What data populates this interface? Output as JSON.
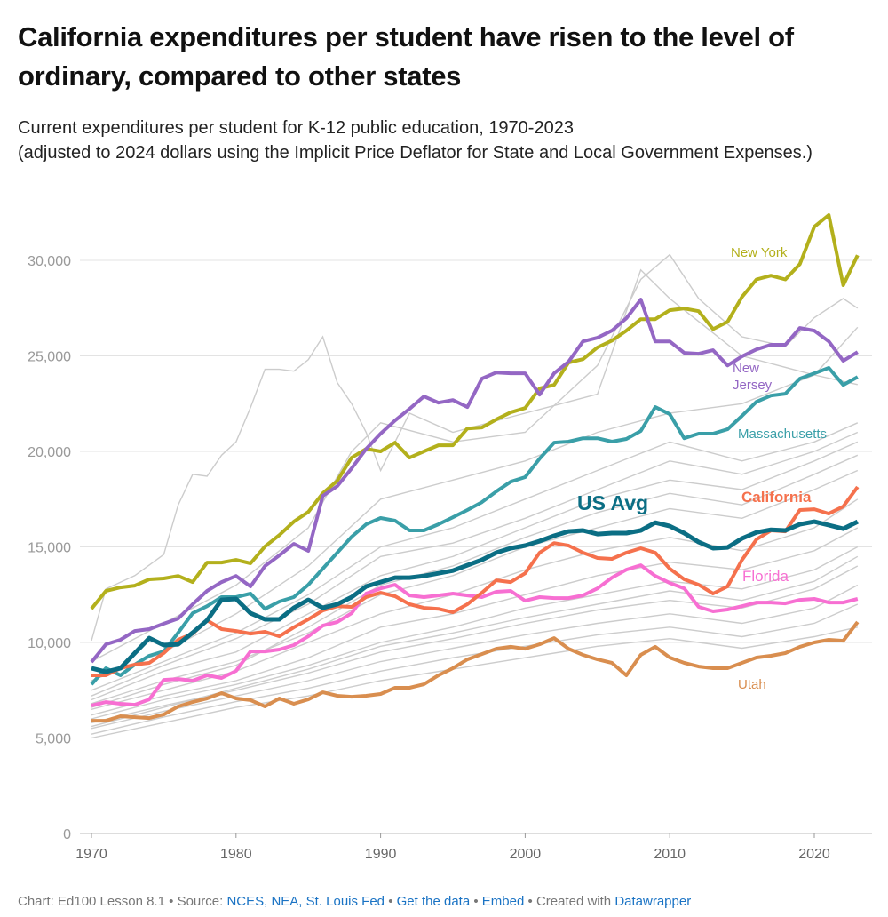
{
  "title": "California expenditures per student have risen to the level of ordinary, compared to other states",
  "subtitle_line1": "Current expenditures per student for K-12 public education, 1970-2023",
  "subtitle_line2": "(adjusted to 2024 dollars using the Implicit Price Deflator for State and Local Government Expenses.)",
  "footer": {
    "chart_credit": "Chart: Ed100 Lesson 8.1",
    "source_prefix": "Source:",
    "source_link": "NCES, NEA, St. Louis Fed",
    "get_data": "Get the data",
    "embed": "Embed",
    "created_prefix": "Created with",
    "datawrapper": "Datawrapper",
    "sep": "•"
  },
  "chart_data": {
    "type": "line",
    "title": "California expenditures per student have risen to the level of ordinary, compared to other states",
    "xlabel": "",
    "ylabel": "",
    "xlim": [
      1970,
      2023
    ],
    "ylim": [
      0,
      32500
    ],
    "x_ticks": [
      1970,
      1980,
      1990,
      2000,
      2010,
      2020
    ],
    "y_ticks": [
      0,
      5000,
      10000,
      15000,
      20000,
      25000,
      30000
    ],
    "y_tick_labels": [
      "0",
      "5,000",
      "10,000",
      "15,000",
      "20,000",
      "25,000",
      "30,000"
    ],
    "grid": "horizontal",
    "x_start": 1970,
    "series": [
      {
        "name": "New York",
        "color": "#b3b01c",
        "values": [
          11765,
          12700,
          12880,
          12970,
          13300,
          13350,
          13480,
          13160,
          14180,
          14180,
          14320,
          14140,
          15020,
          15620,
          16320,
          16830,
          17810,
          18460,
          19670,
          20130,
          20000,
          20460,
          19670,
          20000,
          20320,
          20320,
          21200,
          21250,
          21670,
          22040,
          22270,
          23300,
          23480,
          24650,
          24830,
          25440,
          25800,
          26320,
          26920,
          26920,
          27390,
          27480,
          27340,
          26400,
          26780,
          28090,
          29000,
          29200,
          29000,
          29800,
          31760,
          32370,
          28700,
          30270
        ]
      },
      {
        "name": "New Jersey",
        "color": "#9467c4",
        "values": [
          8970,
          9900,
          10140,
          10600,
          10700,
          10980,
          11250,
          12000,
          12700,
          13160,
          13480,
          12930,
          14000,
          14560,
          15160,
          14790,
          17670,
          18180,
          19110,
          20130,
          20930,
          21620,
          22230,
          22880,
          22550,
          22690,
          22320,
          23810,
          24130,
          24090,
          24090,
          22970,
          24090,
          24690,
          25760,
          25950,
          26320,
          26970,
          27950,
          25760,
          25760,
          25160,
          25110,
          25300,
          24500,
          24970,
          25340,
          25580,
          25580,
          26460,
          26320,
          25760,
          24740,
          25200
        ]
      },
      {
        "name": "Massachusetts",
        "color": "#3a9fa8",
        "values": [
          7810,
          8650,
          8280,
          8840,
          9300,
          9530,
          10510,
          11530,
          11900,
          12370,
          12370,
          12560,
          11760,
          12140,
          12370,
          13020,
          13860,
          14700,
          15530,
          16180,
          16510,
          16370,
          15860,
          15860,
          16180,
          16550,
          16930,
          17340,
          17900,
          18410,
          18650,
          19620,
          20460,
          20510,
          20690,
          20690,
          20510,
          20650,
          21070,
          22320,
          21950,
          20690,
          20930,
          20930,
          21160,
          21860,
          22600,
          22920,
          23020,
          23810,
          24090,
          24370,
          23480,
          23900
        ]
      },
      {
        "name": "US Avg",
        "color": "#0b6e84",
        "values": [
          8650,
          8460,
          8650,
          9440,
          10230,
          9860,
          9900,
          10510,
          11160,
          12230,
          12280,
          11530,
          11210,
          11210,
          11810,
          12230,
          11810,
          12000,
          12370,
          12930,
          13160,
          13390,
          13390,
          13480,
          13620,
          13760,
          14040,
          14320,
          14700,
          14930,
          15070,
          15300,
          15580,
          15810,
          15860,
          15670,
          15720,
          15720,
          15860,
          16270,
          16090,
          15720,
          15250,
          14930,
          14970,
          15440,
          15760,
          15900,
          15860,
          16180,
          16320,
          16140,
          15950,
          16320
        ]
      },
      {
        "name": "California",
        "color": "#f5714d",
        "values": [
          8280,
          8280,
          8650,
          8840,
          8930,
          9440,
          10140,
          10460,
          11160,
          10700,
          10600,
          10460,
          10560,
          10320,
          10790,
          11210,
          11670,
          11900,
          11860,
          12370,
          12600,
          12420,
          12000,
          11810,
          11760,
          11580,
          12000,
          12600,
          13250,
          13160,
          13620,
          14700,
          15200,
          15070,
          14700,
          14420,
          14370,
          14700,
          14930,
          14700,
          13860,
          13300,
          13020,
          12560,
          12930,
          14320,
          15390,
          15860,
          15810,
          16930,
          16970,
          16740,
          17110,
          18140
        ]
      },
      {
        "name": "Florida",
        "color": "#f76fd2",
        "values": [
          6700,
          6880,
          6790,
          6740,
          7020,
          8040,
          8090,
          8000,
          8280,
          8140,
          8510,
          9530,
          9530,
          9630,
          9860,
          10320,
          10880,
          11070,
          11530,
          12560,
          12830,
          13020,
          12460,
          12370,
          12460,
          12560,
          12460,
          12370,
          12650,
          12700,
          12180,
          12370,
          12320,
          12320,
          12460,
          12830,
          13390,
          13810,
          14040,
          13480,
          13110,
          12830,
          11860,
          11630,
          11720,
          11900,
          12090,
          12090,
          12040,
          12230,
          12280,
          12090,
          12090,
          12280
        ]
      },
      {
        "name": "Utah",
        "color": "#d98e4f",
        "values": [
          5900,
          5900,
          6140,
          6090,
          6040,
          6230,
          6650,
          6880,
          7070,
          7350,
          7070,
          6980,
          6650,
          7070,
          6790,
          7020,
          7390,
          7210,
          7160,
          7210,
          7300,
          7630,
          7630,
          7810,
          8280,
          8650,
          9110,
          9390,
          9670,
          9770,
          9670,
          9900,
          10230,
          9670,
          9350,
          9110,
          8930,
          8280,
          9350,
          9770,
          9210,
          8930,
          8740,
          8650,
          8650,
          8930,
          9210,
          9300,
          9440,
          9770,
          10000,
          10140,
          10090,
          11070
        ]
      }
    ],
    "other_states_color": "#cccccc",
    "other_states": [
      {
        "x": [
          1970,
          1971,
          1973,
          1975,
          1976,
          1977,
          1978,
          1979,
          1980,
          1981,
          1982,
          1983,
          1984,
          1985,
          1986,
          1987,
          1988,
          1989,
          1990,
          1992,
          1995,
          2000,
          2005,
          2008,
          2010,
          2015,
          2020,
          2023
        ],
        "values": [
          10100,
          12800,
          13500,
          14600,
          17200,
          18800,
          18700,
          19800,
          20500,
          22300,
          24300,
          24300,
          24200,
          24800,
          26000,
          23600,
          22500,
          21000,
          19000,
          22000,
          21000,
          22000,
          23000,
          29500,
          28000,
          25000,
          24000,
          23500
        ]
      },
      {
        "x": [
          1970,
          1975,
          1980,
          1985,
          1988,
          1990,
          1995,
          2000,
          2005,
          2008,
          2010,
          2012,
          2015,
          2018,
          2020,
          2022,
          2023
        ],
        "values": [
          9000,
          11000,
          13000,
          16000,
          20000,
          21500,
          20500,
          21000,
          24500,
          29000,
          30300,
          28000,
          26000,
          25500,
          27000,
          28000,
          27500
        ]
      },
      {
        "x": [
          1970,
          1975,
          1980,
          1985,
          1990,
          1995,
          2000,
          2005,
          2010,
          2015,
          2020,
          2023
        ],
        "values": [
          8000,
          9500,
          11500,
          14000,
          17500,
          18500,
          19500,
          21000,
          22000,
          22500,
          24000,
          26500
        ]
      },
      {
        "x": [
          1970,
          1975,
          1980,
          1985,
          1990,
          1995,
          2000,
          2005,
          2010,
          2015,
          2020,
          2023
        ],
        "values": [
          7500,
          9000,
          10500,
          12500,
          15000,
          16000,
          17500,
          19000,
          20500,
          19500,
          20500,
          21500
        ]
      },
      {
        "x": [
          1970,
          1975,
          1980,
          1985,
          1990,
          1995,
          2000,
          2005,
          2010,
          2015,
          2020,
          2023
        ],
        "values": [
          7000,
          8500,
          9500,
          11500,
          13500,
          14500,
          16000,
          17500,
          18500,
          18000,
          19500,
          20500
        ]
      },
      {
        "x": [
          1970,
          1975,
          1980,
          1985,
          1990,
          1995,
          2000,
          2005,
          2010,
          2015,
          2020,
          2023
        ],
        "values": [
          6800,
          8000,
          9000,
          10500,
          12500,
          13500,
          15000,
          16000,
          17000,
          16500,
          18000,
          19000
        ]
      },
      {
        "x": [
          1970,
          1975,
          1980,
          1985,
          1990,
          1995,
          2000,
          2005,
          2010,
          2015,
          2020,
          2023
        ],
        "values": [
          6500,
          7500,
          8500,
          10000,
          11500,
          12500,
          13800,
          14800,
          15500,
          14800,
          16000,
          17500
        ]
      },
      {
        "x": [
          1970,
          1975,
          1980,
          1985,
          1990,
          1995,
          2000,
          2005,
          2010,
          2015,
          2020,
          2023
        ],
        "values": [
          6200,
          7200,
          8000,
          9200,
          10800,
          11500,
          12500,
          13500,
          14200,
          13800,
          14800,
          16000
        ]
      },
      {
        "x": [
          1970,
          1975,
          1980,
          1985,
          1990,
          1995,
          2000,
          2005,
          2010,
          2015,
          2020,
          2023
        ],
        "values": [
          6000,
          7000,
          7800,
          8800,
          10000,
          10800,
          11800,
          12500,
          13200,
          12800,
          13800,
          15000
        ]
      },
      {
        "x": [
          1970,
          1975,
          1980,
          1985,
          1990,
          1995,
          2000,
          2005,
          2010,
          2015,
          2020,
          2023
        ],
        "values": [
          5800,
          6700,
          7500,
          8400,
          9500,
          10200,
          11000,
          11700,
          12200,
          11800,
          12800,
          14000
        ]
      },
      {
        "x": [
          1970,
          1975,
          1980,
          1985,
          1990,
          1995,
          2000,
          2005,
          2010,
          2015,
          2020,
          2023
        ],
        "values": [
          5500,
          6400,
          7200,
          8000,
          9000,
          9700,
          10400,
          11000,
          11500,
          11000,
          11800,
          13000
        ]
      },
      {
        "x": [
          1970,
          1975,
          1980,
          1985,
          1990,
          1995,
          2000,
          2005,
          2010,
          2015,
          2020,
          2023
        ],
        "values": [
          5200,
          6100,
          6900,
          7600,
          8500,
          9200,
          9800,
          10400,
          10800,
          10300,
          11000,
          12000
        ]
      },
      {
        "x": [
          1970,
          1975,
          1980,
          1985,
          1990,
          1995,
          2000,
          2005,
          2010,
          2015,
          2020,
          2023
        ],
        "values": [
          5000,
          5800,
          6600,
          7200,
          8000,
          8600,
          9200,
          9800,
          10200,
          9700,
          10300,
          10800
        ]
      },
      {
        "x": [
          1970,
          1975,
          1980,
          1985,
          1990,
          1995,
          2000,
          2005,
          2010,
          2015,
          2020,
          2023
        ],
        "values": [
          7200,
          8800,
          10200,
          12000,
          14500,
          15200,
          16500,
          18000,
          19500,
          18800,
          20000,
          21000
        ]
      },
      {
        "x": [
          1970,
          1975,
          1980,
          1985,
          1990,
          1995,
          2000,
          2005,
          2010,
          2015,
          2020,
          2023
        ],
        "values": [
          6600,
          7800,
          8800,
          10800,
          13000,
          14000,
          15500,
          16800,
          17800,
          17200,
          18800,
          19800
        ]
      },
      {
        "x": [
          1970,
          1975,
          1980,
          1985,
          1990,
          1995,
          2000,
          2005,
          2010,
          2015,
          2020,
          2023
        ],
        "values": [
          5600,
          6600,
          7600,
          8600,
          9800,
          10500,
          11300,
          12000,
          12700,
          12200,
          13200,
          14500
        ]
      }
    ]
  }
}
